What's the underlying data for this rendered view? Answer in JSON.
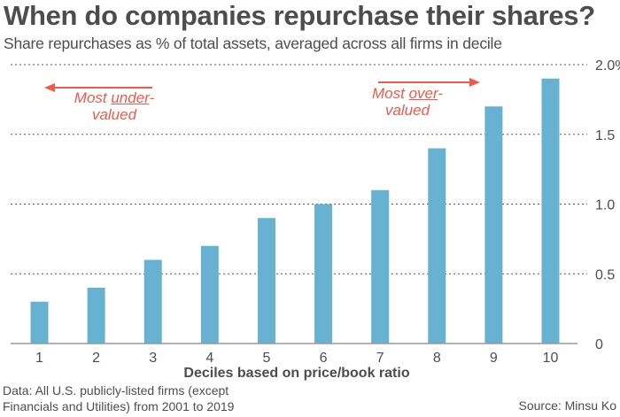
{
  "header": {
    "title": "When do companies repurchase their shares?",
    "subtitle": "Share repurchases as % of total assets, averaged across all firms in decile"
  },
  "annotations": {
    "left": {
      "line1_prefix": "Most ",
      "line1_underlined": "under",
      "line1_suffix": "-",
      "line2": "valued",
      "arrow_direction": "left"
    },
    "right": {
      "line1_prefix": "Most ",
      "line1_underlined": "over",
      "line1_suffix": "-",
      "line2": "valued",
      "arrow_direction": "right"
    }
  },
  "footer": {
    "note_line1": "Data: All U.S. publicly-listed firms (except",
    "note_line2": "Financials and Utilities) from 2001 to 2019",
    "source": "Source: Minsu Ko"
  },
  "colors": {
    "bar": "#67b2d1",
    "annotation": "#f05a4a",
    "text": "#4d4d4d",
    "grid": "#555555",
    "baseline": "#999999"
  },
  "chart_data": {
    "type": "bar",
    "title": "When do companies repurchase their shares?",
    "subtitle": "Share repurchases as % of total assets, averaged across all firms in decile",
    "xlabel": "Deciles based on price/book ratio",
    "ylabel": "",
    "categories": [
      "1",
      "2",
      "3",
      "4",
      "5",
      "6",
      "7",
      "8",
      "9",
      "10"
    ],
    "values": [
      0.3,
      0.4,
      0.6,
      0.7,
      0.9,
      1.0,
      1.1,
      1.4,
      1.7,
      1.9
    ],
    "ylim": [
      0,
      2.0
    ],
    "yticks": [
      0,
      0.5,
      1.0,
      1.5,
      2.0
    ],
    "ytick_labels": [
      "0",
      "0.5",
      "1.0",
      "1.5",
      "2.0%"
    ],
    "grid": "horizontal-dotted",
    "yaxis_side": "right",
    "legend": "none"
  }
}
